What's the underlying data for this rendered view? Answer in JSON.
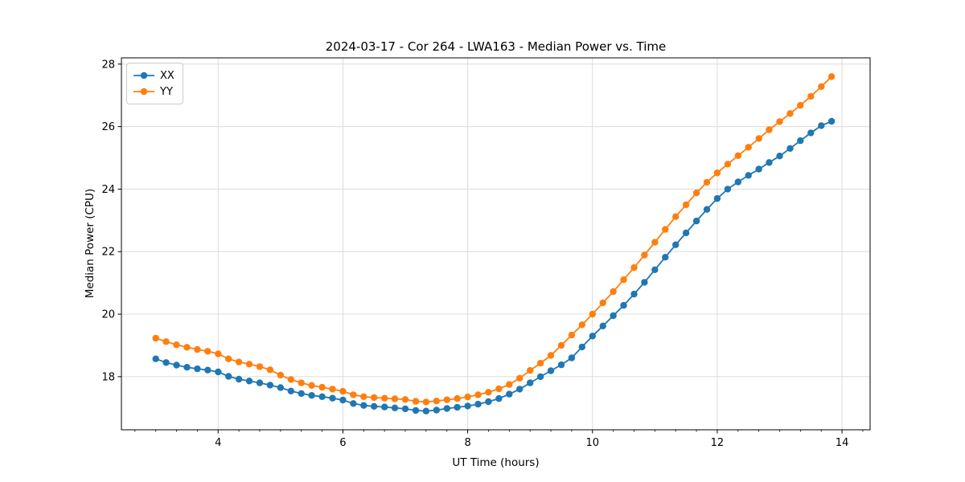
{
  "window": {
    "title": "2024-03-17 - Cor 264 - LWA163 - Median Power vs. Time"
  },
  "chart_data": {
    "type": "line",
    "title": "2024-03-17 - Cor 264 - LWA163 - Median Power vs. Time",
    "xlabel": "UT Time (hours)",
    "ylabel": "Median Power (CPU)",
    "xlim": [
      2.45,
      14.45
    ],
    "ylim": [
      16.3,
      28.2
    ],
    "x_major_ticks": [
      4,
      6,
      8,
      10,
      12,
      14
    ],
    "x_minor_step": 0.33333,
    "y_major_ticks": [
      18,
      20,
      22,
      24,
      26,
      28
    ],
    "grid": true,
    "legend_position": "upper-left",
    "x": [
      3,
      3.167,
      3.333,
      3.5,
      3.667,
      3.833,
      4,
      4.167,
      4.333,
      4.5,
      4.667,
      4.833,
      5,
      5.167,
      5.333,
      5.5,
      5.667,
      5.833,
      6,
      6.167,
      6.333,
      6.5,
      6.667,
      6.833,
      7,
      7.167,
      7.333,
      7.5,
      7.667,
      7.833,
      8,
      8.167,
      8.333,
      8.5,
      8.667,
      8.833,
      9,
      9.167,
      9.333,
      9.5,
      9.667,
      9.833,
      10,
      10.167,
      10.333,
      10.5,
      10.667,
      10.833,
      11,
      11.167,
      11.333,
      11.5,
      11.667,
      11.833,
      12,
      12.167,
      12.333,
      12.5,
      12.667,
      12.833,
      13,
      13.167,
      13.333,
      13.5,
      13.667,
      13.833
    ],
    "series": [
      {
        "name": "XX",
        "color": "#1f77b4",
        "values": [
          18.57,
          18.45,
          18.37,
          18.3,
          18.25,
          18.21,
          18.15,
          18.01,
          17.92,
          17.86,
          17.8,
          17.73,
          17.65,
          17.54,
          17.46,
          17.4,
          17.36,
          17.31,
          17.25,
          17.14,
          17.08,
          17.05,
          17.03,
          17.0,
          16.97,
          16.92,
          16.9,
          16.93,
          16.98,
          17.02,
          17.06,
          17.12,
          17.2,
          17.3,
          17.44,
          17.6,
          17.8,
          18.0,
          18.19,
          18.38,
          18.6,
          18.95,
          19.3,
          19.62,
          19.95,
          20.28,
          20.64,
          21.02,
          21.42,
          21.82,
          22.22,
          22.6,
          22.98,
          23.35,
          23.7,
          24.0,
          24.23,
          24.44,
          24.64,
          24.85,
          25.06,
          25.3,
          25.55,
          25.8,
          26.03,
          26.17
        ]
      },
      {
        "name": "YY",
        "color": "#ff7f0e",
        "values": [
          19.23,
          19.12,
          19.02,
          18.94,
          18.87,
          18.81,
          18.73,
          18.57,
          18.47,
          18.4,
          18.32,
          18.22,
          18.05,
          17.91,
          17.8,
          17.72,
          17.66,
          17.6,
          17.53,
          17.42,
          17.36,
          17.33,
          17.31,
          17.29,
          17.27,
          17.21,
          17.19,
          17.22,
          17.26,
          17.3,
          17.35,
          17.42,
          17.5,
          17.61,
          17.75,
          17.95,
          18.2,
          18.43,
          18.68,
          19.0,
          19.33,
          19.66,
          20.0,
          20.36,
          20.72,
          21.1,
          21.49,
          21.89,
          22.3,
          22.71,
          23.12,
          23.5,
          23.88,
          24.22,
          24.52,
          24.8,
          25.07,
          25.34,
          25.62,
          25.9,
          26.16,
          26.42,
          26.68,
          26.97,
          27.28,
          27.6
        ]
      }
    ],
    "style": {
      "grid_color": "#dcdcdc",
      "spine_color": "#000000",
      "tick_color": "#000000",
      "marker_radius": 4.2,
      "line_width": 1.8
    }
  }
}
